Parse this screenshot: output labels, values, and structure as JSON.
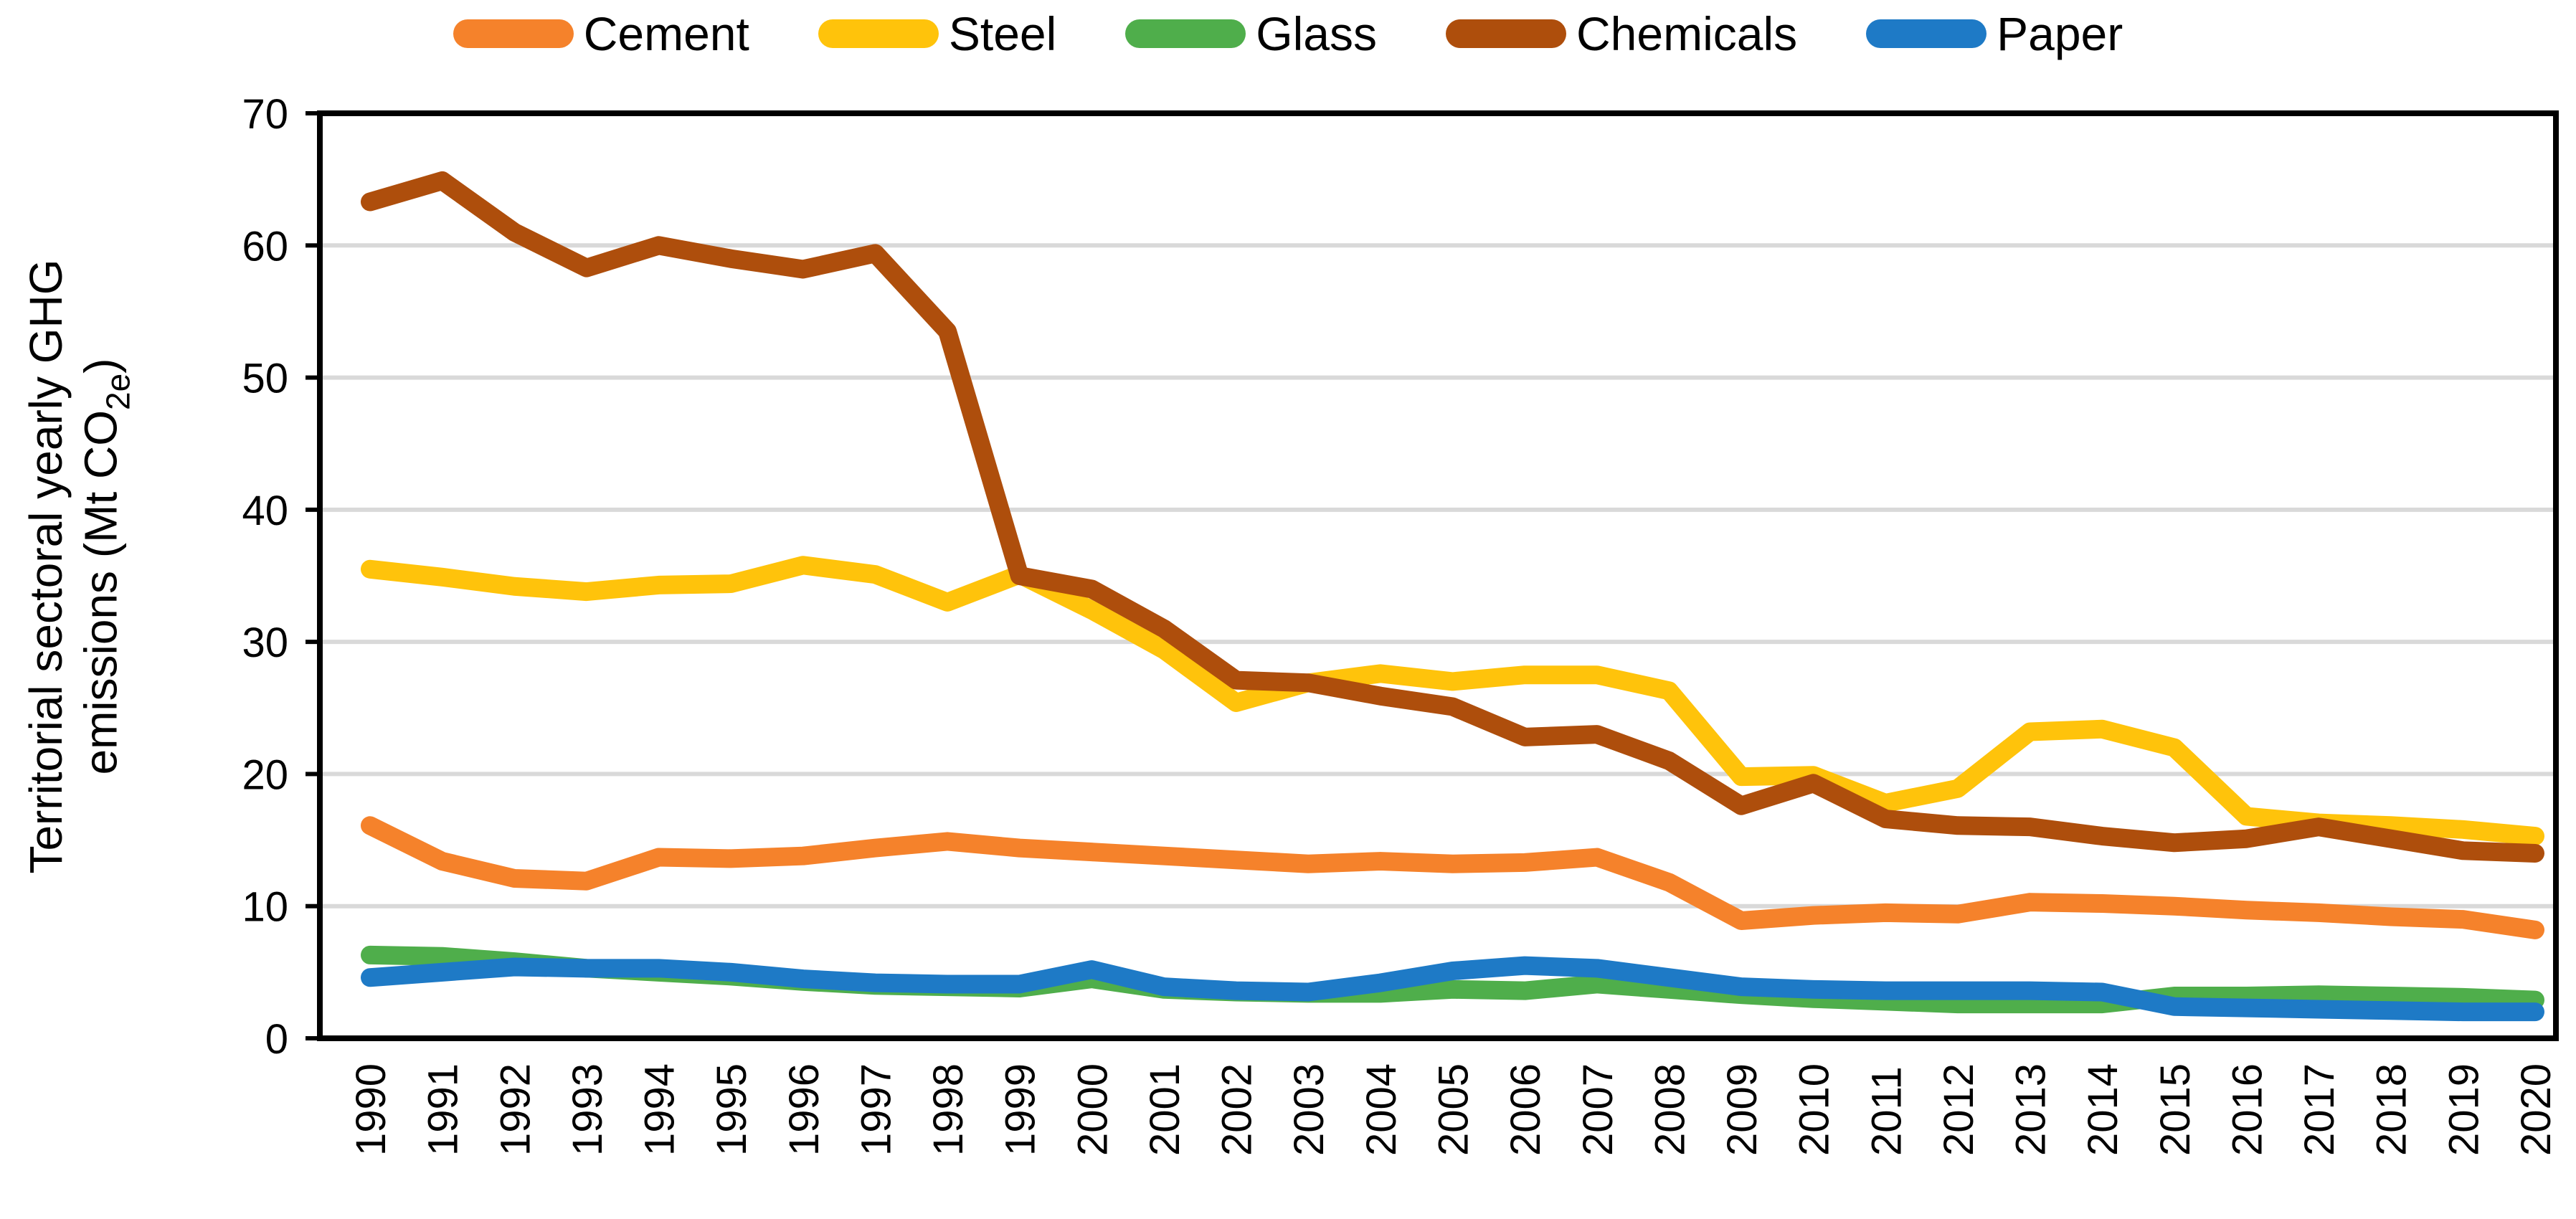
{
  "y_axis_title": {
    "line1": "Territorial sectoral yearly GHG",
    "line2_prefix": "emissions (Mt CO",
    "subscript": "2e",
    "line2_suffix": ")"
  },
  "chart_data": {
    "type": "line",
    "title": "",
    "xlabel": "",
    "ylabel": "Territorial sectoral yearly GHG emissions (Mt CO2e)",
    "ylim": [
      0,
      70
    ],
    "y_ticks": [
      0,
      10,
      20,
      30,
      40,
      50,
      60,
      70
    ],
    "grid": "horizontal",
    "legend_position": "top",
    "x": [
      1990,
      1991,
      1992,
      1993,
      1994,
      1995,
      1996,
      1997,
      1998,
      1999,
      2000,
      2001,
      2002,
      2003,
      2004,
      2005,
      2006,
      2007,
      2008,
      2009,
      2010,
      2011,
      2012,
      2013,
      2014,
      2015,
      2016,
      2017,
      2018,
      2019,
      2020
    ],
    "series": [
      {
        "name": "Cement",
        "color": "#F5822B",
        "values": [
          16.1,
          13.4,
          12.1,
          11.9,
          13.7,
          13.6,
          13.8,
          14.4,
          14.9,
          14.4,
          14.1,
          13.8,
          13.5,
          13.2,
          13.4,
          13.2,
          13.3,
          13.7,
          11.8,
          8.9,
          9.3,
          9.5,
          9.4,
          10.3,
          10.2,
          10.0,
          9.7,
          9.5,
          9.2,
          9.0,
          8.2
        ]
      },
      {
        "name": "Steel",
        "color": "#FFC30B",
        "values": [
          35.5,
          34.9,
          34.2,
          33.8,
          34.3,
          34.4,
          35.8,
          35.1,
          33.0,
          35.1,
          32.4,
          29.4,
          25.4,
          26.9,
          27.6,
          27.0,
          27.5,
          27.5,
          26.3,
          19.8,
          19.9,
          17.8,
          18.9,
          23.2,
          23.4,
          22.0,
          16.8,
          16.3,
          16.1,
          15.8,
          15.3
        ]
      },
      {
        "name": "Glass",
        "color": "#4FAE4B",
        "values": [
          6.3,
          6.2,
          5.8,
          5.3,
          5.0,
          4.7,
          4.3,
          4.0,
          3.9,
          3.8,
          4.5,
          3.7,
          3.5,
          3.4,
          3.4,
          3.7,
          3.6,
          4.1,
          3.7,
          3.3,
          3.0,
          2.8,
          2.6,
          2.6,
          2.6,
          3.2,
          3.2,
          3.3,
          3.2,
          3.1,
          2.9
        ]
      },
      {
        "name": "Chemicals",
        "color": "#AE4E0C",
        "values": [
          63.3,
          64.9,
          61.0,
          58.3,
          60.0,
          59.0,
          58.2,
          59.4,
          53.5,
          35.0,
          34.0,
          31.0,
          27.1,
          26.9,
          25.9,
          25.1,
          22.8,
          23.0,
          21.0,
          17.6,
          19.3,
          16.6,
          16.1,
          16.0,
          15.3,
          14.8,
          15.1,
          16.0,
          15.1,
          14.2,
          14.0
        ]
      },
      {
        "name": "Paper",
        "color": "#1E7AC6",
        "values": [
          4.6,
          5.0,
          5.4,
          5.3,
          5.3,
          5.0,
          4.5,
          4.2,
          4.1,
          4.1,
          5.2,
          3.9,
          3.6,
          3.5,
          4.2,
          5.1,
          5.5,
          5.3,
          4.6,
          3.9,
          3.7,
          3.6,
          3.6,
          3.6,
          3.5,
          2.4,
          2.3,
          2.2,
          2.1,
          2.0,
          2.0
        ]
      }
    ],
    "style": {
      "grid_color": "#D9D9D9",
      "axis_color": "#000000",
      "background": "#FFFFFF",
      "line_width": 26
    }
  }
}
